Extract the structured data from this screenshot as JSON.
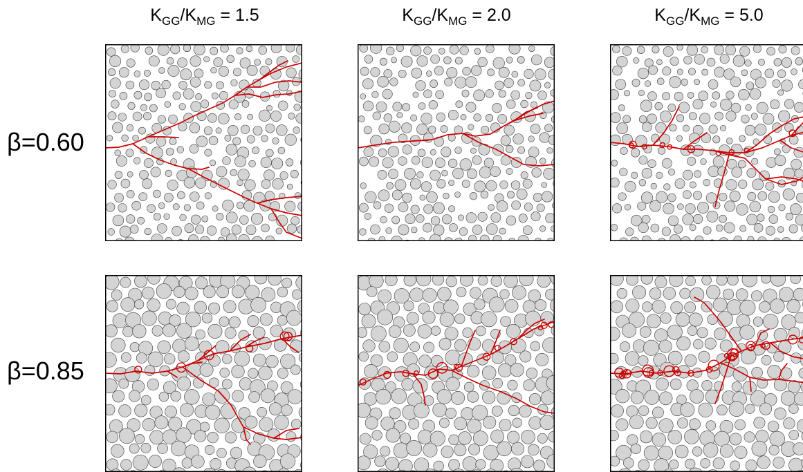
{
  "columns": [
    {
      "k_top": "K",
      "sub_top": "GG",
      "slash": "/",
      "k_bot": "K",
      "sub_bot": "MG",
      "eq": " = ",
      "value": "1.5"
    },
    {
      "k_top": "K",
      "sub_top": "GG",
      "slash": "/",
      "k_bot": "K",
      "sub_bot": "MG",
      "eq": " = ",
      "value": "2.0"
    },
    {
      "k_top": "K",
      "sub_top": "GG",
      "slash": "/",
      "k_bot": "K",
      "sub_bot": "MG",
      "eq": " = ",
      "value": "5.0"
    }
  ],
  "rows": [
    {
      "label": "β=0.60"
    },
    {
      "label": "β=0.85"
    }
  ],
  "colors": {
    "particle_fill": "#d4d4d4",
    "particle_stroke": "#3a3a3a",
    "crack": "#cc0000",
    "frame": "#000000"
  }
}
